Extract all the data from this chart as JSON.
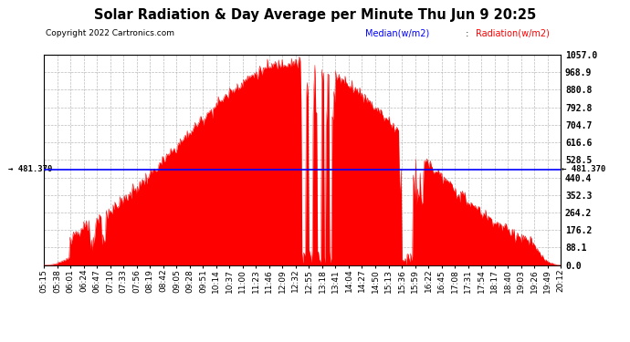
{
  "title": "Solar Radiation & Day Average per Minute Thu Jun 9 20:25",
  "copyright": "Copyright 2022 Cartronics.com",
  "median_value": 481.37,
  "y_max": 1057.0,
  "y_min": 0.0,
  "y_ticks": [
    0.0,
    88.1,
    176.2,
    264.2,
    352.3,
    440.4,
    528.5,
    616.6,
    704.7,
    792.8,
    880.8,
    968.9,
    1057.0
  ],
  "background_color": "#ffffff",
  "plot_bg_color": "#ffffff",
  "bar_color": "#ff0000",
  "median_color": "#0000ff",
  "title_color": "#000000",
  "copyright_color": "#000000",
  "legend_median_color": "#0000ff",
  "legend_radiation_color": "#ff0000",
  "x_labels": [
    "05:15",
    "05:38",
    "06:01",
    "06:24",
    "06:47",
    "07:10",
    "07:33",
    "07:56",
    "08:19",
    "08:42",
    "09:05",
    "09:28",
    "09:51",
    "10:14",
    "10:37",
    "11:00",
    "11:23",
    "11:46",
    "12:09",
    "12:32",
    "12:55",
    "13:18",
    "13:41",
    "14:04",
    "14:27",
    "14:50",
    "15:13",
    "15:36",
    "15:59",
    "16:22",
    "16:45",
    "17:08",
    "17:31",
    "17:54",
    "18:17",
    "18:40",
    "19:03",
    "19:26",
    "19:49",
    "20:12"
  ],
  "n_points": 600,
  "median_label": "Median(w/m2)",
  "radiation_label": "Radiation(w/m2)"
}
